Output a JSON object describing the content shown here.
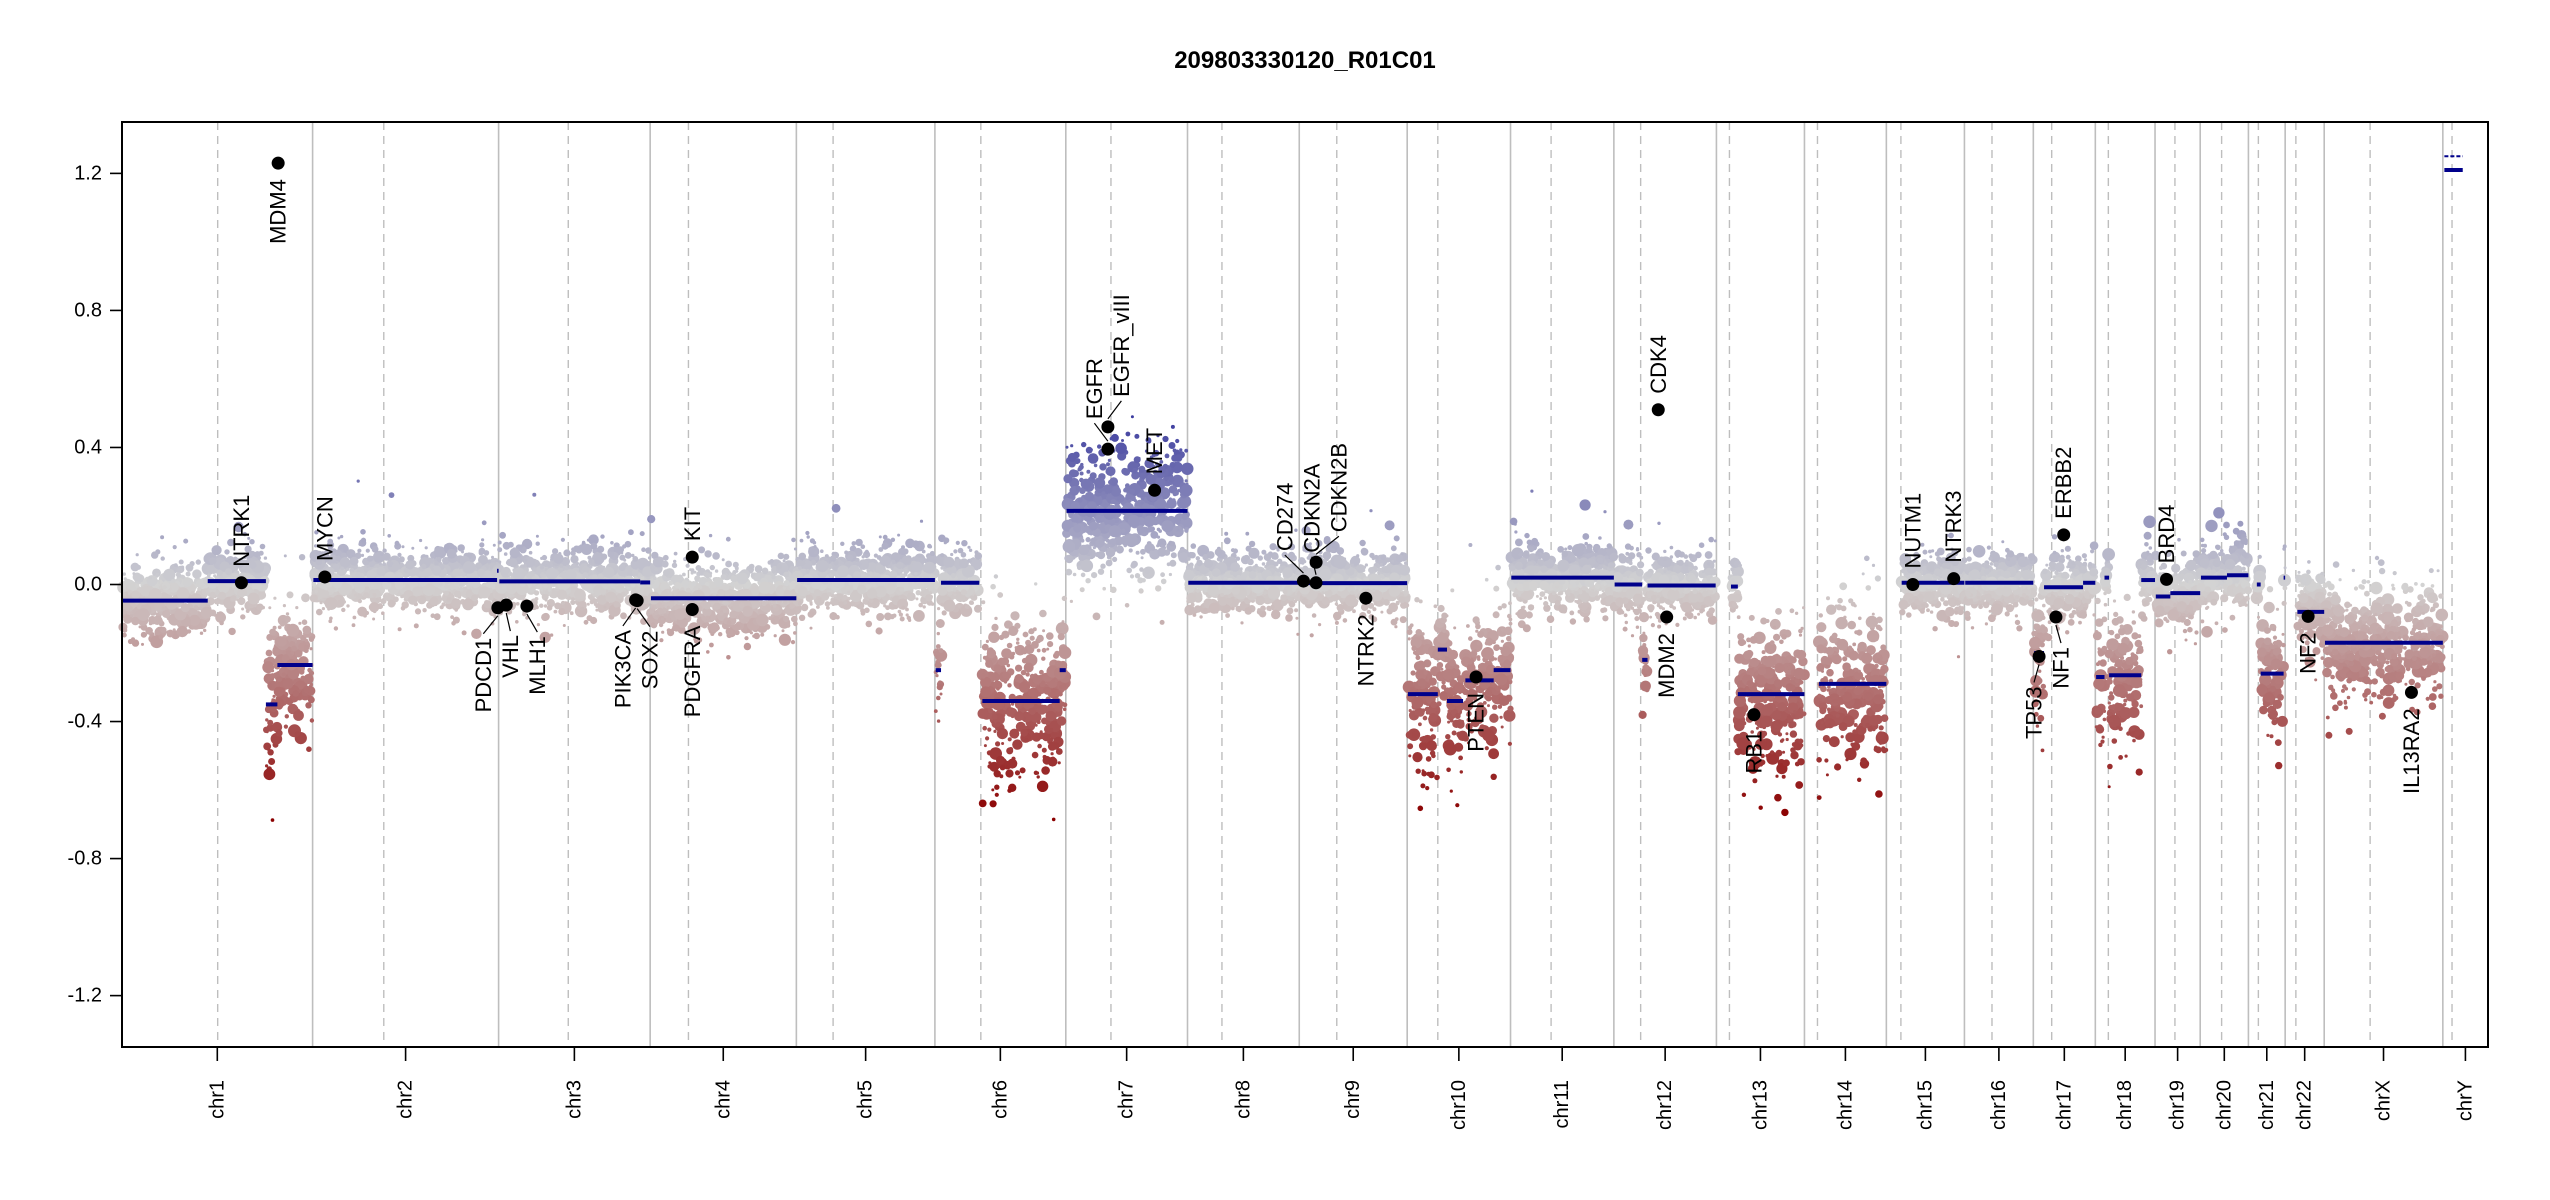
{
  "chart_data": {
    "type": "scatter",
    "title": "209803330120_R01C01",
    "xlabel": "",
    "ylabel": "",
    "ylim": [
      -1.35,
      1.35
    ],
    "yticks": [
      1.2,
      0.8,
      0.4,
      0.0,
      -0.4,
      -0.8,
      -1.2
    ],
    "ytick_labels": [
      "1.2",
      "0.8",
      "0.4",
      "0.0",
      "-0.4",
      "-0.8",
      "-1.2"
    ],
    "x_unit": "Mb",
    "colors": {
      "gain": "#00008b",
      "neutral": "#d3d3d3",
      "loss": "#8b0000",
      "segment": "#00008b",
      "gene_point": "#000000",
      "chromosome_boundary": "#bebebe",
      "centromere": "#bebebe"
    },
    "chromosomes": [
      {
        "name": "chr1",
        "length": 249,
        "centromere": 125
      },
      {
        "name": "chr2",
        "length": 243,
        "centromere": 93
      },
      {
        "name": "chr3",
        "length": 198,
        "centromere": 91
      },
      {
        "name": "chr4",
        "length": 191,
        "centromere": 50
      },
      {
        "name": "chr5",
        "length": 181,
        "centromere": 48
      },
      {
        "name": "chr6",
        "length": 171,
        "centromere": 60
      },
      {
        "name": "chr7",
        "length": 159,
        "centromere": 59
      },
      {
        "name": "chr8",
        "length": 146,
        "centromere": 45
      },
      {
        "name": "chr9",
        "length": 141,
        "centromere": 49
      },
      {
        "name": "chr10",
        "length": 135,
        "centromere": 40
      },
      {
        "name": "chr11",
        "length": 135,
        "centromere": 53
      },
      {
        "name": "chr12",
        "length": 134,
        "centromere": 35
      },
      {
        "name": "chr13",
        "length": 115,
        "centromere": 17
      },
      {
        "name": "chr14",
        "length": 107,
        "centromere": 17
      },
      {
        "name": "chr15",
        "length": 102,
        "centromere": 19
      },
      {
        "name": "chr16",
        "length": 90,
        "centromere": 36
      },
      {
        "name": "chr17",
        "length": 81,
        "centromere": 24
      },
      {
        "name": "chr18",
        "length": 78,
        "centromere": 17
      },
      {
        "name": "chr19",
        "length": 59,
        "centromere": 26
      },
      {
        "name": "chr20",
        "length": 63,
        "centromere": 28
      },
      {
        "name": "chr21",
        "length": 48,
        "centromere": 13
      },
      {
        "name": "chr22",
        "length": 51,
        "centromere": 14
      },
      {
        "name": "chrX",
        "length": 155,
        "centromere": 60
      },
      {
        "name": "chrY",
        "length": 59,
        "centromere": 12
      }
    ],
    "segments": [
      {
        "chr": "chr1",
        "start": 1,
        "end": 112,
        "value": -0.047
      },
      {
        "chr": "chr1",
        "start": 112,
        "end": 188,
        "value": 0.01
      },
      {
        "chr": "chr1",
        "start": 188,
        "end": 203,
        "value": -0.35
      },
      {
        "chr": "chr1",
        "start": 203,
        "end": 249,
        "value": -0.235
      },
      {
        "chr": "chr2",
        "start": 1,
        "end": 241,
        "value": 0.013
      },
      {
        "chr": "chr2",
        "start": 241,
        "end": 243,
        "value": 0.04
      },
      {
        "chr": "chr3",
        "start": 1,
        "end": 185,
        "value": 0.009
      },
      {
        "chr": "chr3",
        "start": 185,
        "end": 198,
        "value": 0.006
      },
      {
        "chr": "chr4",
        "start": 1,
        "end": 191,
        "value": -0.04
      },
      {
        "chr": "chr5",
        "start": 1,
        "end": 181,
        "value": 0.013
      },
      {
        "chr": "chr6",
        "start": 1,
        "end": 8,
        "value": -0.25
      },
      {
        "chr": "chr6",
        "start": 8,
        "end": 58,
        "value": 0.005
      },
      {
        "chr": "chr6",
        "start": 62,
        "end": 163,
        "value": -0.34
      },
      {
        "chr": "chr6",
        "start": 163,
        "end": 171,
        "value": -0.25
      },
      {
        "chr": "chr7",
        "start": 1,
        "end": 159,
        "value": 0.215
      },
      {
        "chr": "chr8",
        "start": 1,
        "end": 146,
        "value": 0.005
      },
      {
        "chr": "chr9",
        "start": 1,
        "end": 141,
        "value": 0.004
      },
      {
        "chr": "chr10",
        "start": 1,
        "end": 40,
        "value": -0.32
      },
      {
        "chr": "chr10",
        "start": 40,
        "end": 52,
        "value": -0.19
      },
      {
        "chr": "chr10",
        "start": 52,
        "end": 73,
        "value": -0.34
      },
      {
        "chr": "chr10",
        "start": 76,
        "end": 113,
        "value": -0.28
      },
      {
        "chr": "chr10",
        "start": 113,
        "end": 135,
        "value": -0.25
      },
      {
        "chr": "chr11",
        "start": 1,
        "end": 135,
        "value": 0.02
      },
      {
        "chr": "chr12",
        "start": 1,
        "end": 37,
        "value": 0.0
      },
      {
        "chr": "chr12",
        "start": 37,
        "end": 44,
        "value": -0.22
      },
      {
        "chr": "chr12",
        "start": 44,
        "end": 133,
        "value": -0.003
      },
      {
        "chr": "chr13",
        "start": 19,
        "end": 28,
        "value": -0.006
      },
      {
        "chr": "chr13",
        "start": 28,
        "end": 115,
        "value": -0.32
      },
      {
        "chr": "chr14",
        "start": 19,
        "end": 107,
        "value": -0.29
      },
      {
        "chr": "chr15",
        "start": 20,
        "end": 102,
        "value": 0.005
      },
      {
        "chr": "chr16",
        "start": 1,
        "end": 90,
        "value": 0.005
      },
      {
        "chr": "chr17",
        "start": 1,
        "end": 14,
        "value": -0.2
      },
      {
        "chr": "chr17",
        "start": 14,
        "end": 65,
        "value": -0.008
      },
      {
        "chr": "chr17",
        "start": 65,
        "end": 81,
        "value": 0.005
      },
      {
        "chr": "chr18",
        "start": 1,
        "end": 12,
        "value": -0.27
      },
      {
        "chr": "chr18",
        "start": 12,
        "end": 18,
        "value": 0.02
      },
      {
        "chr": "chr18",
        "start": 18,
        "end": 60,
        "value": -0.265
      },
      {
        "chr": "chr18",
        "start": 60,
        "end": 78,
        "value": 0.013
      },
      {
        "chr": "chr19",
        "start": 1,
        "end": 20,
        "value": -0.035
      },
      {
        "chr": "chr19",
        "start": 20,
        "end": 59,
        "value": -0.025
      },
      {
        "chr": "chr20",
        "start": 1,
        "end": 35,
        "value": 0.02
      },
      {
        "chr": "chr20",
        "start": 35,
        "end": 63,
        "value": 0.027
      },
      {
        "chr": "chr21",
        "start": 11,
        "end": 16,
        "value": 0.0
      },
      {
        "chr": "chr21",
        "start": 16,
        "end": 46,
        "value": -0.26
      },
      {
        "chr": "chr21",
        "start": 46,
        "end": 48,
        "value": 0.02
      },
      {
        "chr": "chr22",
        "start": 16,
        "end": 51,
        "value": -0.08
      },
      {
        "chr": "chrX",
        "start": 1,
        "end": 155,
        "value": -0.17
      },
      {
        "chr": "chrY",
        "start": 2,
        "end": 26,
        "value": 1.21
      },
      {
        "chr": "chrY",
        "start": 2,
        "end": 26,
        "value": 1.25
      }
    ],
    "genes": [
      {
        "name": "NTRK1",
        "chr": "chr1",
        "pos": 156,
        "value": 0.005
      },
      {
        "name": "MDM4",
        "chr": "chr1",
        "pos": 204,
        "value": 1.23
      },
      {
        "name": "MYCN",
        "chr": "chr2",
        "pos": 16,
        "value": 0.022
      },
      {
        "name": "PDCD1",
        "chr": "chr2",
        "pos": 242,
        "value": -0.068
      },
      {
        "name": "VHL",
        "chr": "chr3",
        "pos": 10,
        "value": -0.06
      },
      {
        "name": "MLH1",
        "chr": "chr3",
        "pos": 37,
        "value": -0.063
      },
      {
        "name": "SOX2",
        "chr": "chr3",
        "pos": 181,
        "value": -0.047
      },
      {
        "name": "PIK3CA",
        "chr": "chr3",
        "pos": 179,
        "value": -0.045
      },
      {
        "name": "KIT",
        "chr": "chr4",
        "pos": 55,
        "value": 0.08
      },
      {
        "name": "PDGFRA",
        "chr": "chr4",
        "pos": 55,
        "value": -0.073
      },
      {
        "name": "EGFR",
        "chr": "chr7",
        "pos": 55,
        "value": 0.395
      },
      {
        "name": "EGFR_vIII",
        "chr": "chr7",
        "pos": 55,
        "value": 0.46
      },
      {
        "name": "MET",
        "chr": "chr7",
        "pos": 116,
        "value": 0.275
      },
      {
        "name": "CD274",
        "chr": "chr9",
        "pos": 5.5,
        "value": 0.01
      },
      {
        "name": "CDKN2A",
        "chr": "chr9",
        "pos": 21.9,
        "value": 0.005
      },
      {
        "name": "CDKN2B",
        "chr": "chr9",
        "pos": 22.0,
        "value": 0.065
      },
      {
        "name": "NTRK2",
        "chr": "chr9",
        "pos": 87,
        "value": -0.04
      },
      {
        "name": "PTEN",
        "chr": "chr10",
        "pos": 90,
        "value": -0.27
      },
      {
        "name": "CDK4",
        "chr": "chr12",
        "pos": 58,
        "value": 0.51
      },
      {
        "name": "MDM2",
        "chr": "chr12",
        "pos": 69,
        "value": -0.095
      },
      {
        "name": "RB1",
        "chr": "chr13",
        "pos": 49,
        "value": -0.38
      },
      {
        "name": "NUTM1",
        "chr": "chr15",
        "pos": 34.6,
        "value": 0.0
      },
      {
        "name": "NTRK3",
        "chr": "chr15",
        "pos": 88,
        "value": 0.017
      },
      {
        "name": "TP53",
        "chr": "chr17",
        "pos": 7.5,
        "value": -0.21
      },
      {
        "name": "NF1",
        "chr": "chr17",
        "pos": 29.5,
        "value": -0.095
      },
      {
        "name": "ERBB2",
        "chr": "chr17",
        "pos": 39.7,
        "value": 0.145
      },
      {
        "name": "BRD4",
        "chr": "chr19",
        "pos": 15,
        "value": 0.015
      },
      {
        "name": "NF2",
        "chr": "chr22",
        "pos": 30,
        "value": -0.093
      },
      {
        "name": "IL13RA2",
        "chr": "chrX",
        "pos": 114,
        "value": -0.315
      }
    ]
  }
}
